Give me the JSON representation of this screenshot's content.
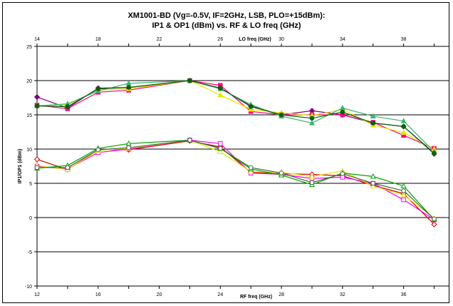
{
  "chart_data": {
    "type": "line",
    "title_line1": "XM1001-BD (Vg=-0.5V, IF=2GHz, LSB, PLO=+15dBm):",
    "title_line2": "IP1 & OP1 (dBm) vs. RF & LO freq (GHz)",
    "xlabel": "RF freq (GHz)",
    "x2label": "LO freq (GHz)",
    "ylabel": "IP1/OP1 (dBm)",
    "xlim": [
      12,
      39
    ],
    "x2lim": [
      14,
      41
    ],
    "ylim": [
      -10,
      25
    ],
    "x_ticks": [
      "12",
      "16",
      "20",
      "24",
      "28",
      "32",
      "36"
    ],
    "x2_ticks": [
      "14",
      "18",
      "22",
      "26",
      "30",
      "34",
      "38"
    ],
    "y_ticks": [
      "-10",
      "-5",
      "0",
      "5",
      "10",
      "15",
      "20",
      "25"
    ],
    "grid": "horizontal",
    "x": [
      12,
      14,
      16,
      18,
      22,
      24,
      26,
      28,
      30,
      32,
      34,
      36,
      38
    ],
    "series": [
      {
        "color": "#800080",
        "marker": "diamond",
        "values": [
          17.6,
          16.0,
          18.9,
          19.0,
          20.0,
          18.9,
          16.3,
          15.0,
          15.6,
          15.0,
          13.8,
          13.3,
          9.3
        ]
      },
      {
        "color": "#ff0080",
        "marker": "square",
        "values": [
          16.4,
          15.9,
          18.3,
          18.6,
          20.0,
          19.3,
          15.5,
          15.0,
          15.0,
          15.0,
          13.9,
          12.0,
          10.1
        ]
      },
      {
        "color": "#e6e600",
        "marker": "triangle",
        "values": [
          16.3,
          16.5,
          18.6,
          18.8,
          20.0,
          17.9,
          15.8,
          15.3,
          14.9,
          15.8,
          13.5,
          12.4,
          10.0
        ]
      },
      {
        "color": "#3cb371",
        "marker": "triangle",
        "values": [
          16.3,
          16.6,
          18.5,
          19.6,
          20.0,
          18.8,
          16.5,
          14.8,
          13.8,
          16.0,
          14.8,
          14.1,
          9.6
        ]
      },
      {
        "color": "#006400",
        "marker": "circle",
        "values": [
          16.3,
          16.2,
          18.8,
          19.0,
          20.0,
          18.9,
          16.2,
          15.0,
          14.5,
          15.4,
          13.8,
          13.3,
          9.4
        ]
      },
      {
        "color": "#cc0000",
        "marker": "diamond-open",
        "values": [
          8.5,
          7.0,
          9.9,
          9.9,
          11.2,
          10.3,
          6.6,
          6.4,
          6.3,
          6.1,
          4.7,
          3.5,
          -1.0
        ]
      },
      {
        "color": "#ff00ff",
        "marker": "square-open",
        "values": [
          7.5,
          7.1,
          9.5,
          10.0,
          11.3,
          10.8,
          6.5,
          6.3,
          5.7,
          5.9,
          5.0,
          2.6,
          -0.3
        ]
      },
      {
        "color": "#e6e600",
        "marker": "triangle-open",
        "values": [
          7.6,
          7.0,
          9.8,
          10.1,
          11.3,
          9.6,
          6.7,
          6.6,
          6.0,
          6.8,
          4.6,
          3.3,
          -0.1
        ]
      },
      {
        "color": "#00a000",
        "marker": "triangle-open",
        "values": [
          7.2,
          7.6,
          10.1,
          10.8,
          11.3,
          10.1,
          7.1,
          6.2,
          4.8,
          6.5,
          6.0,
          4.6,
          -0.3
        ]
      },
      {
        "color": "#3c6e3c",
        "marker": "circle-open",
        "values": [
          7.3,
          7.3,
          9.9,
          10.2,
          11.3,
          10.1,
          7.3,
          6.5,
          5.1,
          6.4,
          5.0,
          3.9,
          -0.2
        ]
      }
    ]
  }
}
